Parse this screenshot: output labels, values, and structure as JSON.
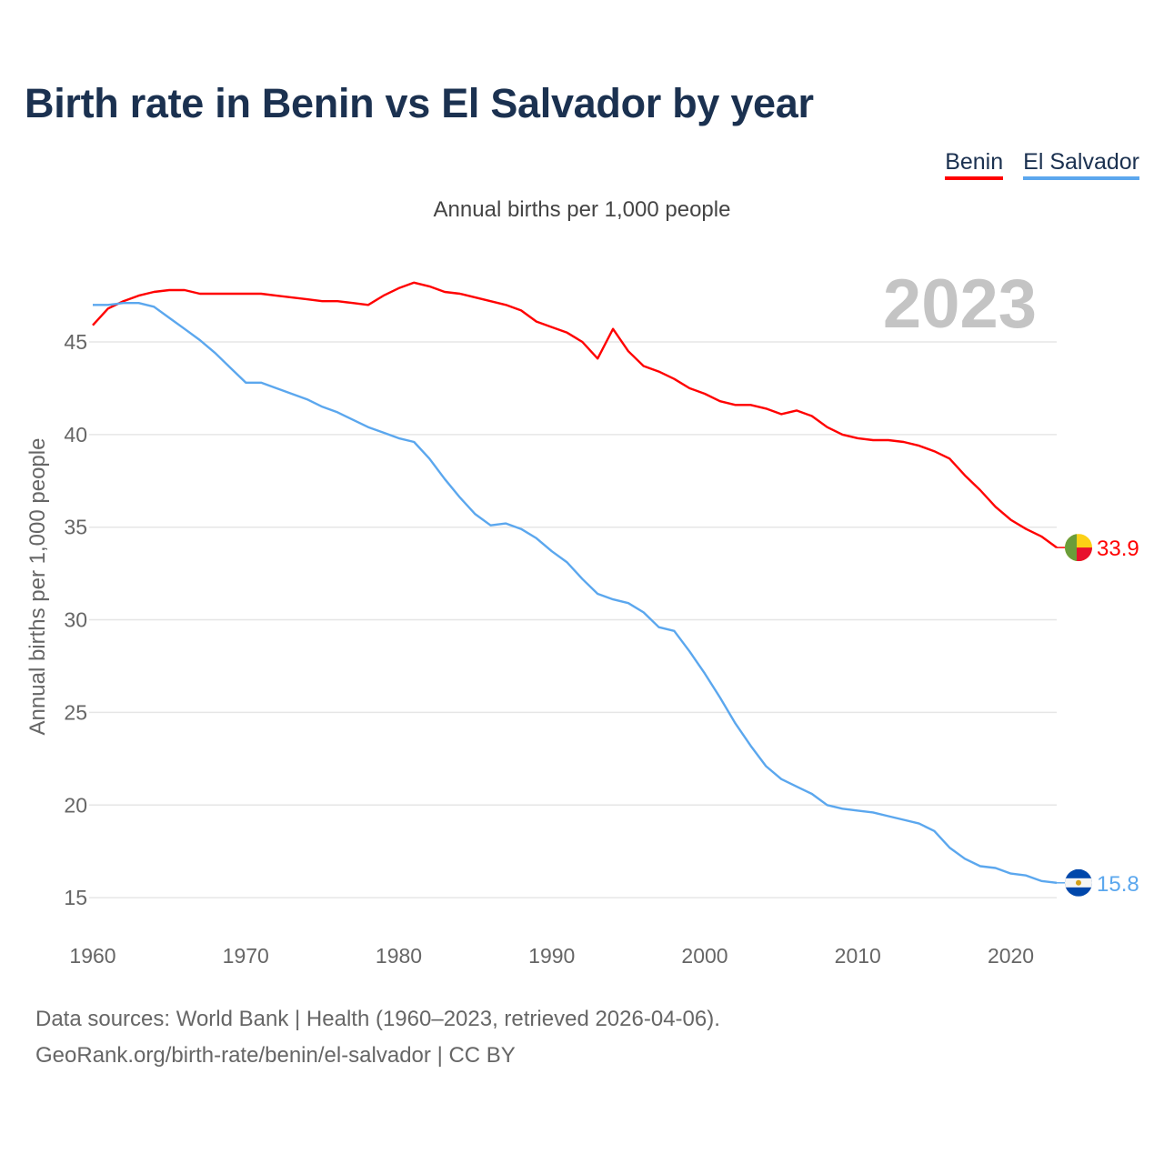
{
  "chart_data": {
    "type": "line",
    "title": "Birth rate in Benin vs El Salvador by year",
    "subtitle": "Annual births per 1,000 people",
    "ylabel": "Annual births per 1,000 people",
    "xlabel": "",
    "year_label": "2023",
    "xlim": [
      1960,
      2023
    ],
    "ylim": [
      15,
      48.5
    ],
    "xticks": [
      1960,
      1970,
      1980,
      1990,
      2000,
      2010,
      2020
    ],
    "yticks": [
      15,
      20,
      25,
      30,
      35,
      40,
      45
    ],
    "grid": true,
    "legend_position": "top-right",
    "x": [
      1960,
      1961,
      1962,
      1963,
      1964,
      1965,
      1966,
      1967,
      1968,
      1969,
      1970,
      1971,
      1972,
      1973,
      1974,
      1975,
      1976,
      1977,
      1978,
      1979,
      1980,
      1981,
      1982,
      1983,
      1984,
      1985,
      1986,
      1987,
      1988,
      1989,
      1990,
      1991,
      1992,
      1993,
      1994,
      1995,
      1996,
      1997,
      1998,
      1999,
      2000,
      2001,
      2002,
      2003,
      2004,
      2005,
      2006,
      2007,
      2008,
      2009,
      2010,
      2011,
      2012,
      2013,
      2014,
      2015,
      2016,
      2017,
      2018,
      2019,
      2020,
      2021,
      2022,
      2023
    ],
    "series": [
      {
        "name": "Benin",
        "color": "#ff0000",
        "end_label": "33.9",
        "values": [
          45.9,
          46.8,
          47.2,
          47.5,
          47.7,
          47.8,
          47.8,
          47.6,
          47.6,
          47.6,
          47.6,
          47.6,
          47.5,
          47.4,
          47.3,
          47.2,
          47.2,
          47.1,
          47.0,
          47.5,
          47.9,
          48.2,
          48.0,
          47.7,
          47.6,
          47.4,
          47.2,
          47.0,
          46.7,
          46.1,
          45.8,
          45.5,
          45.0,
          44.1,
          45.7,
          44.5,
          43.7,
          43.4,
          43.0,
          42.5,
          42.2,
          41.8,
          41.6,
          41.6,
          41.4,
          41.1,
          41.3,
          41.0,
          40.4,
          40.0,
          39.8,
          39.7,
          39.7,
          39.6,
          39.4,
          39.1,
          38.7,
          37.8,
          37.0,
          36.1,
          35.4,
          34.9,
          34.5,
          33.9
        ]
      },
      {
        "name": "El Salvador",
        "color": "#5ba7ee",
        "end_label": "15.8",
        "values": [
          47.0,
          47.0,
          47.1,
          47.1,
          46.9,
          46.3,
          45.7,
          45.1,
          44.4,
          43.6,
          42.8,
          42.8,
          42.5,
          42.2,
          41.9,
          41.5,
          41.2,
          40.8,
          40.4,
          40.1,
          39.8,
          39.6,
          38.7,
          37.6,
          36.6,
          35.7,
          35.1,
          35.2,
          34.9,
          34.4,
          33.7,
          33.1,
          32.2,
          31.4,
          31.1,
          30.9,
          30.4,
          29.6,
          29.4,
          28.3,
          27.1,
          25.8,
          24.4,
          23.2,
          22.1,
          21.4,
          21.0,
          20.6,
          20.0,
          19.8,
          19.7,
          19.6,
          19.4,
          19.2,
          19.0,
          18.6,
          17.7,
          17.1,
          16.7,
          16.6,
          16.3,
          16.2,
          15.9,
          15.8
        ]
      }
    ]
  },
  "footer": {
    "line1": "Data sources: World Bank | Health (1960–2023, retrieved 2026-04-06).",
    "line2": "GeoRank.org/birth-rate/benin/el-salvador | CC BY"
  }
}
